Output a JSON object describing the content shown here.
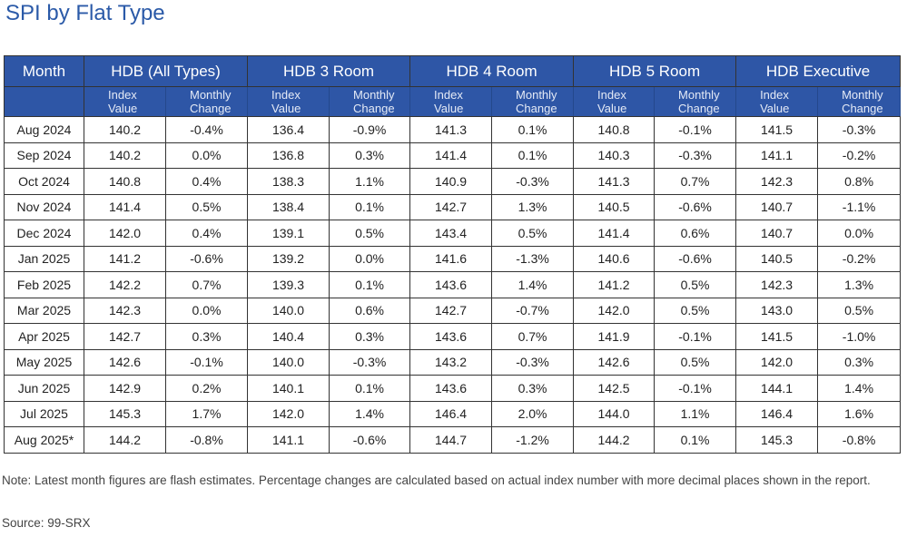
{
  "title": "SPI by Flat Type",
  "colors": {
    "header_bg": "#2e56a6",
    "title": "#2b5aa8"
  },
  "table": {
    "month_header": "Month",
    "groups": [
      "HDB (All Types)",
      "HDB 3 Room",
      "HDB 4 Room",
      "HDB 5 Room",
      "HDB Executive"
    ],
    "sub_headers": {
      "index": [
        "Index",
        "Value"
      ],
      "change": [
        "Monthly",
        "Change"
      ]
    },
    "rows": [
      [
        "Aug 2024",
        "140.2",
        "-0.4%",
        "136.4",
        "-0.9%",
        "141.3",
        "0.1%",
        "140.8",
        "-0.1%",
        "141.5",
        "-0.3%"
      ],
      [
        "Sep 2024",
        "140.2",
        "0.0%",
        "136.8",
        "0.3%",
        "141.4",
        "0.1%",
        "140.3",
        "-0.3%",
        "141.1",
        "-0.2%"
      ],
      [
        "Oct 2024",
        "140.8",
        "0.4%",
        "138.3",
        "1.1%",
        "140.9",
        "-0.3%",
        "141.3",
        "0.7%",
        "142.3",
        "0.8%"
      ],
      [
        "Nov 2024",
        "141.4",
        "0.5%",
        "138.4",
        "0.1%",
        "142.7",
        "1.3%",
        "140.5",
        "-0.6%",
        "140.7",
        "-1.1%"
      ],
      [
        "Dec 2024",
        "142.0",
        "0.4%",
        "139.1",
        "0.5%",
        "143.4",
        "0.5%",
        "141.4",
        "0.6%",
        "140.7",
        "0.0%"
      ],
      [
        "Jan 2025",
        "141.2",
        "-0.6%",
        "139.2",
        "0.0%",
        "141.6",
        "-1.3%",
        "140.6",
        "-0.6%",
        "140.5",
        "-0.2%"
      ],
      [
        "Feb 2025",
        "142.2",
        "0.7%",
        "139.3",
        "0.1%",
        "143.6",
        "1.4%",
        "141.2",
        "0.5%",
        "142.3",
        "1.3%"
      ],
      [
        "Mar 2025",
        "142.3",
        "0.0%",
        "140.0",
        "0.6%",
        "142.7",
        "-0.7%",
        "142.0",
        "0.5%",
        "143.0",
        "0.5%"
      ],
      [
        "Apr 2025",
        "142.7",
        "0.3%",
        "140.4",
        "0.3%",
        "143.6",
        "0.7%",
        "141.9",
        "-0.1%",
        "141.5",
        "-1.0%"
      ],
      [
        "May 2025",
        "142.6",
        "-0.1%",
        "140.0",
        "-0.3%",
        "143.2",
        "-0.3%",
        "142.6",
        "0.5%",
        "142.0",
        "0.3%"
      ],
      [
        "Jun 2025",
        "142.9",
        "0.2%",
        "140.1",
        "0.1%",
        "143.6",
        "0.3%",
        "142.5",
        "-0.1%",
        "144.1",
        "1.4%"
      ],
      [
        "Jul 2025",
        "145.3",
        "1.7%",
        "142.0",
        "1.4%",
        "146.4",
        "2.0%",
        "144.0",
        "1.1%",
        "146.4",
        "1.6%"
      ],
      [
        "Aug 2025*",
        "144.2",
        "-0.8%",
        "141.1",
        "-0.6%",
        "144.7",
        "-1.2%",
        "144.2",
        "0.1%",
        "145.3",
        "-0.8%"
      ]
    ]
  },
  "note": "Note: Latest month figures are flash estimates. Percentage changes are calculated based on actual index number with more decimal places shown in the report.",
  "source": "Source: 99-SRX"
}
